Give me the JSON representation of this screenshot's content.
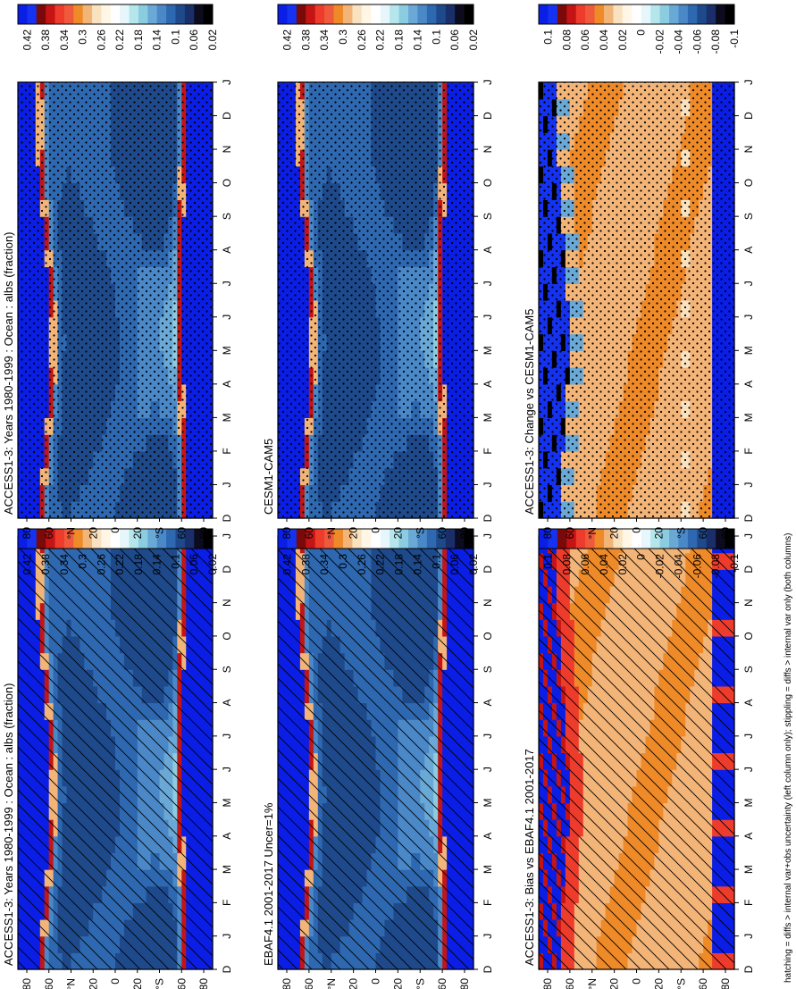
{
  "chart_data": [
    {
      "type": "heatmap",
      "title": "ACCESS1-3: Years 1980-1999 : Ocean : albs (fraction)",
      "overlay": "hatching",
      "x_ticks": [
        "D",
        "J",
        "F",
        "M",
        "A",
        "M",
        "J",
        "J",
        "A",
        "S",
        "O",
        "N",
        "D",
        "J"
      ],
      "y_ticks": [
        "80",
        "60",
        "°N",
        "20",
        "0",
        "20",
        "°S",
        "60",
        "80"
      ],
      "colorbar": "cb_abs"
    },
    {
      "type": "heatmap",
      "title": "ACCESS1-3: Years 1980-1999 : Ocean : albs (fraction)",
      "overlay": "stippling",
      "x_ticks": [
        "D",
        "J",
        "F",
        "M",
        "A",
        "M",
        "J",
        "J",
        "A",
        "S",
        "O",
        "N",
        "D",
        "J"
      ],
      "y_ticks": [
        "80",
        "60",
        "°N",
        "20",
        "0",
        "20",
        "°S",
        "60",
        "80"
      ],
      "colorbar": "cb_abs"
    },
    {
      "type": "heatmap",
      "title": "EBAF4.1 2001-2017 Uncer=1%",
      "overlay": "hatching",
      "x_ticks": [
        "D",
        "J",
        "F",
        "M",
        "A",
        "M",
        "J",
        "J",
        "A",
        "S",
        "O",
        "N",
        "D",
        "J"
      ],
      "y_ticks": [
        "80",
        "60",
        "°N",
        "20",
        "0",
        "20",
        "°S",
        "60",
        "80"
      ],
      "colorbar": "cb_abs"
    },
    {
      "type": "heatmap",
      "title": "CESM1-CAM5",
      "overlay": "stippling",
      "x_ticks": [
        "D",
        "J",
        "F",
        "M",
        "A",
        "M",
        "J",
        "J",
        "A",
        "S",
        "O",
        "N",
        "D",
        "J"
      ],
      "y_ticks": [
        "80",
        "60",
        "°N",
        "20",
        "0",
        "20",
        "°S",
        "60",
        "80"
      ],
      "colorbar": "cb_abs"
    },
    {
      "type": "heatmap",
      "title": "ACCESS1-3: Bias vs EBAF4.1 2001-2017",
      "overlay": "hatching",
      "x_ticks": [
        "D",
        "J",
        "F",
        "M",
        "A",
        "M",
        "J",
        "J",
        "A",
        "S",
        "O",
        "N",
        "D",
        "J"
      ],
      "y_ticks": [
        "80",
        "60",
        "°N",
        "20",
        "0",
        "20",
        "°S",
        "60",
        "80"
      ],
      "colorbar": "cb_diff"
    },
    {
      "type": "heatmap",
      "title": "ACCESS1-3: Change vs CESM1-CAM5",
      "overlay": "stippling",
      "x_ticks": [
        "D",
        "J",
        "F",
        "M",
        "A",
        "M",
        "J",
        "J",
        "A",
        "S",
        "O",
        "N",
        "D",
        "J"
      ],
      "y_ticks": [
        "80",
        "60",
        "°N",
        "20",
        "0",
        "20",
        "°S",
        "60",
        "80"
      ],
      "colorbar": "cb_diff"
    }
  ],
  "colorbars": {
    "cb_abs": {
      "labels": [
        "0.42",
        "0.38",
        "0.34",
        "0.3",
        "0.26",
        "0.22",
        "0.18",
        "0.14",
        "0.1",
        "0.06",
        "0.02"
      ],
      "colors": [
        "#0a1ee6",
        "#1432f0",
        "#7a0a0a",
        "#c41414",
        "#ee3c2c",
        "#f05a3c",
        "#ef8a28",
        "#f3b478",
        "#f9e2c0",
        "#fff6e6",
        "#ffffff",
        "#e6f6fb",
        "#b4e6ec",
        "#8ccce0",
        "#6aa8d6",
        "#4a88c8",
        "#2e68b0",
        "#1e4a8c",
        "#1a2f6a",
        "#0c0c1e",
        "#000000"
      ]
    },
    "cb_diff": {
      "labels": [
        "0.1",
        "0.08",
        "0.06",
        "0.04",
        "0.02",
        "0",
        "-0.02",
        "-0.04",
        "-0.06",
        "-0.08",
        "-0.1"
      ],
      "colors": [
        "#0a1ee6",
        "#1432f0",
        "#7a0a0a",
        "#c41414",
        "#ee3c2c",
        "#f05a3c",
        "#ef8a28",
        "#f3b478",
        "#f9e2c0",
        "#fff6e6",
        "#ffffff",
        "#e6f6fb",
        "#b4e6ec",
        "#8ccce0",
        "#6aa8d6",
        "#4a88c8",
        "#2e68b0",
        "#1e4a8c",
        "#1a2f6a",
        "#0c0c1e",
        "#000000"
      ]
    }
  },
  "footnote": "hatching = diffs > internal var+obs uncertainty (left column only); stippling = diffs > internal var only (both columns)"
}
